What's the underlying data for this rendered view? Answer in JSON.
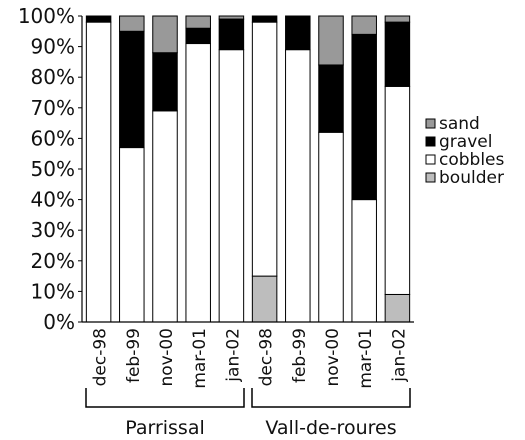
{
  "chart_data": {
    "type": "bar",
    "stacked": true,
    "percent": true,
    "categories": [
      "dec-98",
      "feb-99",
      "nov-00",
      "mar-01",
      "jan-02",
      "dec-98",
      "feb-99",
      "nov-00",
      "mar-01",
      "jan-02"
    ],
    "groups": [
      {
        "label": "Parrissal",
        "start": 0,
        "end": 4
      },
      {
        "label": "Vall-de-roures",
        "start": 5,
        "end": 9
      }
    ],
    "series": [
      {
        "name": "boulder",
        "color": "#bdbdbd",
        "values": [
          0,
          0,
          0,
          0,
          0,
          15,
          0,
          0,
          0,
          9
        ]
      },
      {
        "name": "cobbles",
        "color": "#ffffff",
        "values": [
          98,
          57,
          69,
          91,
          89,
          83,
          89,
          62,
          40,
          68
        ]
      },
      {
        "name": "gravel",
        "color": "#000000",
        "values": [
          2,
          38,
          19,
          5,
          10,
          2,
          11,
          22,
          54,
          21
        ]
      },
      {
        "name": "sand",
        "color": "#999999",
        "values": [
          0,
          5,
          12,
          4,
          1,
          0,
          0,
          16,
          6,
          2
        ]
      }
    ],
    "y_ticks": [
      "0%",
      "10%",
      "20%",
      "30%",
      "40%",
      "50%",
      "60%",
      "70%",
      "80%",
      "90%",
      "100%"
    ],
    "ylim": [
      0,
      100
    ],
    "legend_position": "right",
    "grid": false
  }
}
